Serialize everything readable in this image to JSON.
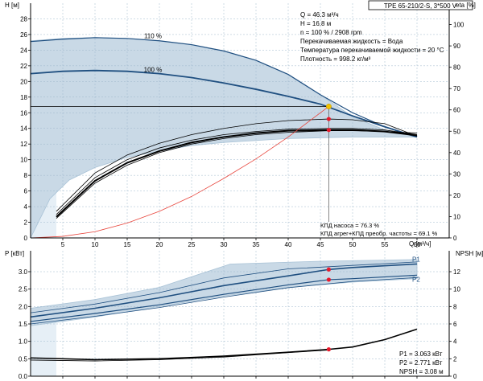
{
  "model_label": "TPE 65-210/2-S, 3*500 V",
  "info_lines": [
    "Q = 46.3 м³/ч",
    "H = 16.8 м",
    "n = 100 % / 2908 rpm",
    "Перекачиваемая жидкость = Вода",
    "Температура перекачиваемой жидкости = 20 °C",
    "Плотность = 998.2 кг/м³"
  ],
  "efficiency_lines": [
    "КПД насоса = 76.3 %",
    "КПД агрег+КПД преобр. частоты = 69.1 %"
  ],
  "power_lines": [
    "P1 = 3.063 кВт",
    "P2 = 2.771 кВт",
    "NPSH = 3.08 м"
  ],
  "colors": {
    "envelope_fill": "#c9d9e6",
    "envelope_edge": "#a8c2d6",
    "light_region": "#e6eff6",
    "curve_blue": "#1f4f80",
    "curve_black": "#000000",
    "system_curve": "#e8453c",
    "op_point": "#f2c200",
    "marker": "#e8192c",
    "axis": "#000000"
  },
  "chart_data": [
    {
      "type": "line",
      "title": "",
      "xlabel": "Q [м³/ч]",
      "ylabel_left": "H [м]",
      "ylabel_right": "eta [%]",
      "xlim": [
        0,
        65
      ],
      "ylim": [
        0,
        30
      ],
      "y2lim": [
        0,
        110
      ],
      "xticks": [
        5,
        10,
        15,
        20,
        25,
        30,
        35,
        40,
        45,
        50,
        55,
        60
      ],
      "yticks": [
        2,
        4,
        6,
        8,
        10,
        12,
        14,
        16,
        18,
        20,
        22,
        24,
        26,
        28
      ],
      "y2ticks": [
        0,
        10,
        20,
        30,
        40,
        50,
        60,
        70,
        80,
        90,
        100
      ],
      "envelope": {
        "upper": [
          [
            0,
            25.2
          ],
          [
            5,
            25.5
          ],
          [
            10,
            25.6
          ],
          [
            15,
            25.5
          ],
          [
            20,
            25.2
          ],
          [
            25,
            24.7
          ],
          [
            30,
            23.9
          ],
          [
            35,
            22.7
          ],
          [
            40,
            20.9
          ],
          [
            45,
            18.3
          ],
          [
            50,
            15.5
          ],
          [
            55,
            13.8
          ],
          [
            60,
            12.9
          ]
        ],
        "lower": [
          [
            0,
            0.0
          ],
          [
            3,
            5.0
          ],
          [
            6,
            7.4
          ],
          [
            10,
            9.0
          ],
          [
            15,
            10.3
          ],
          [
            20,
            11.1
          ],
          [
            25,
            11.8
          ],
          [
            30,
            12.2
          ],
          [
            40,
            12.7
          ],
          [
            50,
            12.9
          ],
          [
            60,
            12.9
          ]
        ]
      },
      "series": [
        {
          "name": "110 %",
          "axis": "H",
          "points": [
            [
              0,
              25.1
            ],
            [
              5,
              25.4
            ],
            [
              10,
              25.6
            ],
            [
              15,
              25.5
            ],
            [
              20,
              25.2
            ],
            [
              25,
              24.7
            ],
            [
              30,
              23.9
            ],
            [
              35,
              22.7
            ],
            [
              40,
              20.9
            ],
            [
              45,
              18.3
            ],
            [
              50,
              16.0
            ],
            [
              55,
              14.2
            ],
            [
              60,
              12.9
            ]
          ]
        },
        {
          "name": "100 %",
          "axis": "H",
          "points": [
            [
              0,
              21.0
            ],
            [
              5,
              21.3
            ],
            [
              10,
              21.4
            ],
            [
              15,
              21.3
            ],
            [
              20,
              21.0
            ],
            [
              25,
              20.5
            ],
            [
              30,
              19.8
            ],
            [
              35,
              19.0
            ],
            [
              40,
              18.1
            ],
            [
              45,
              17.1
            ],
            [
              50,
              15.6
            ],
            [
              55,
              14.2
            ],
            [
              60,
              12.9
            ]
          ]
        },
        {
          "name": "",
          "axis": "H",
          "points": [
            [
              4,
              3.4
            ],
            [
              10,
              8.3
            ],
            [
              15,
              10.6
            ],
            [
              20,
              12.1
            ],
            [
              25,
              13.2
            ],
            [
              30,
              14.0
            ],
            [
              35,
              14.6
            ],
            [
              40,
              15.0
            ],
            [
              46.3,
              15.2
            ],
            [
              50,
              15.1
            ],
            [
              55,
              14.6
            ],
            [
              60,
              13.0
            ]
          ]
        },
        {
          "name": "",
          "axis": "H",
          "points": [
            [
              4,
              3.0
            ],
            [
              10,
              7.7
            ],
            [
              15,
              10.0
            ],
            [
              20,
              11.5
            ],
            [
              25,
              12.5
            ],
            [
              30,
              13.2
            ],
            [
              35,
              13.6
            ],
            [
              40,
              13.9
            ],
            [
              46.3,
              14.0
            ],
            [
              50,
              14.0
            ],
            [
              55,
              13.8
            ],
            [
              60,
              13.2
            ]
          ]
        },
        {
          "name": "",
          "axis": "H",
          "points": [
            [
              4,
              2.7
            ],
            [
              10,
              7.3
            ],
            [
              15,
              9.6
            ],
            [
              20,
              11.1
            ],
            [
              25,
              12.2
            ],
            [
              30,
              12.9
            ],
            [
              35,
              13.4
            ],
            [
              40,
              13.7
            ],
            [
              46.3,
              13.8
            ],
            [
              50,
              13.8
            ],
            [
              55,
              13.6
            ],
            [
              60,
              13.1
            ]
          ]
        },
        {
          "name": "",
          "axis": "H",
          "points": [
            [
              4,
              2.5
            ],
            [
              10,
              7.0
            ],
            [
              15,
              9.3
            ],
            [
              20,
              10.9
            ],
            [
              25,
              12.0
            ],
            [
              30,
              12.7
            ],
            [
              35,
              13.2
            ],
            [
              40,
              13.5
            ],
            [
              46.3,
              13.7
            ],
            [
              50,
              13.7
            ],
            [
              55,
              13.6
            ],
            [
              60,
              13.4
            ]
          ]
        },
        {
          "name": "",
          "axis": "H",
          "points": [
            [
              0,
              0.0
            ],
            [
              5,
              0.2
            ],
            [
              10,
              0.8
            ],
            [
              15,
              1.9
            ],
            [
              20,
              3.4
            ],
            [
              25,
              5.3
            ],
            [
              30,
              7.6
            ],
            [
              35,
              10.1
            ],
            [
              40,
              12.9
            ],
            [
              46.3,
              16.8
            ]
          ]
        },
        {
          "name": "",
          "axis": "H",
          "points": [
            [
              0,
              16.8
            ],
            [
              46.3,
              16.8
            ]
          ]
        }
      ],
      "operating_point": {
        "Q": 46.3,
        "H": 16.8
      },
      "markers": [
        {
          "Q": 46.3,
          "H": 15.2
        },
        {
          "Q": 46.3,
          "H": 13.8
        }
      ],
      "curve_labels": [
        "110 %",
        "100 %"
      ]
    },
    {
      "type": "line",
      "title": "",
      "xlabel": "",
      "ylabel_left": "P [кВт]",
      "ylabel_right": "NPSH [м]",
      "xlim": [
        0,
        65
      ],
      "ylim": [
        0,
        3.6
      ],
      "y2lim": [
        0,
        14.4
      ],
      "xticks": [
        5,
        10,
        15,
        20,
        25,
        30,
        35,
        40,
        45,
        50,
        55,
        60
      ],
      "yticks": [
        0.0,
        0.5,
        1.0,
        1.5,
        2.0,
        2.5,
        3.0
      ],
      "y2ticks": [
        0,
        2,
        4,
        6,
        8,
        10,
        12
      ],
      "envelope": {
        "upper": [
          [
            0,
            1.95
          ],
          [
            10,
            2.2
          ],
          [
            20,
            2.55
          ],
          [
            31,
            3.22
          ],
          [
            45,
            3.3
          ],
          [
            60,
            3.35
          ]
        ],
        "lower": [
          [
            0,
            1.45
          ],
          [
            10,
            1.7
          ],
          [
            20,
            2.0
          ],
          [
            30,
            2.3
          ],
          [
            40,
            2.55
          ],
          [
            50,
            2.7
          ],
          [
            60,
            2.8
          ]
        ]
      },
      "series": [
        {
          "name": "P1",
          "axis": "P",
          "points": [
            [
              0,
              1.7
            ],
            [
              10,
              1.95
            ],
            [
              20,
              2.25
            ],
            [
              30,
              2.6
            ],
            [
              40,
              2.88
            ],
            [
              46.3,
              3.063
            ],
            [
              50,
              3.12
            ],
            [
              60,
              3.22
            ]
          ]
        },
        {
          "name": "P2",
          "axis": "P",
          "points": [
            [
              0,
              1.57
            ],
            [
              10,
              1.8
            ],
            [
              20,
              2.05
            ],
            [
              30,
              2.35
            ],
            [
              40,
              2.62
            ],
            [
              46.3,
              2.771
            ],
            [
              50,
              2.8
            ],
            [
              60,
              2.9
            ]
          ]
        },
        {
          "name": "",
          "axis": "P",
          "points": [
            [
              0,
              1.82
            ],
            [
              10,
              2.07
            ],
            [
              20,
              2.4
            ],
            [
              30,
              2.82
            ],
            [
              40,
              3.08
            ],
            [
              50,
              3.18
            ],
            [
              60,
              3.28
            ]
          ]
        },
        {
          "name": "",
          "axis": "P",
          "points": [
            [
              0,
              1.5
            ],
            [
              10,
              1.72
            ],
            [
              20,
              1.97
            ],
            [
              30,
              2.27
            ],
            [
              40,
              2.54
            ],
            [
              50,
              2.72
            ],
            [
              60,
              2.83
            ]
          ]
        },
        {
          "name": "",
          "axis": "NPSH",
          "points": [
            [
              0,
              2.1
            ],
            [
              10,
              1.9
            ],
            [
              20,
              2.0
            ],
            [
              30,
              2.3
            ],
            [
              40,
              2.75
            ],
            [
              46.3,
              3.08
            ],
            [
              50,
              3.35
            ],
            [
              55,
              4.2
            ],
            [
              60,
              5.4
            ]
          ]
        },
        {
          "name": "",
          "axis": "NPSH",
          "points": [
            [
              0,
              1.85
            ],
            [
              10,
              1.75
            ],
            [
              20,
              1.9
            ],
            [
              30,
              2.2
            ],
            [
              40,
              2.7
            ],
            [
              46.3,
              3.0
            ]
          ]
        }
      ],
      "markers": [
        {
          "Q": 46.3,
          "P": 3.063
        },
        {
          "Q": 46.3,
          "P": 2.771
        },
        {
          "Q": 46.3,
          "NPSH": 3.08
        }
      ]
    }
  ]
}
